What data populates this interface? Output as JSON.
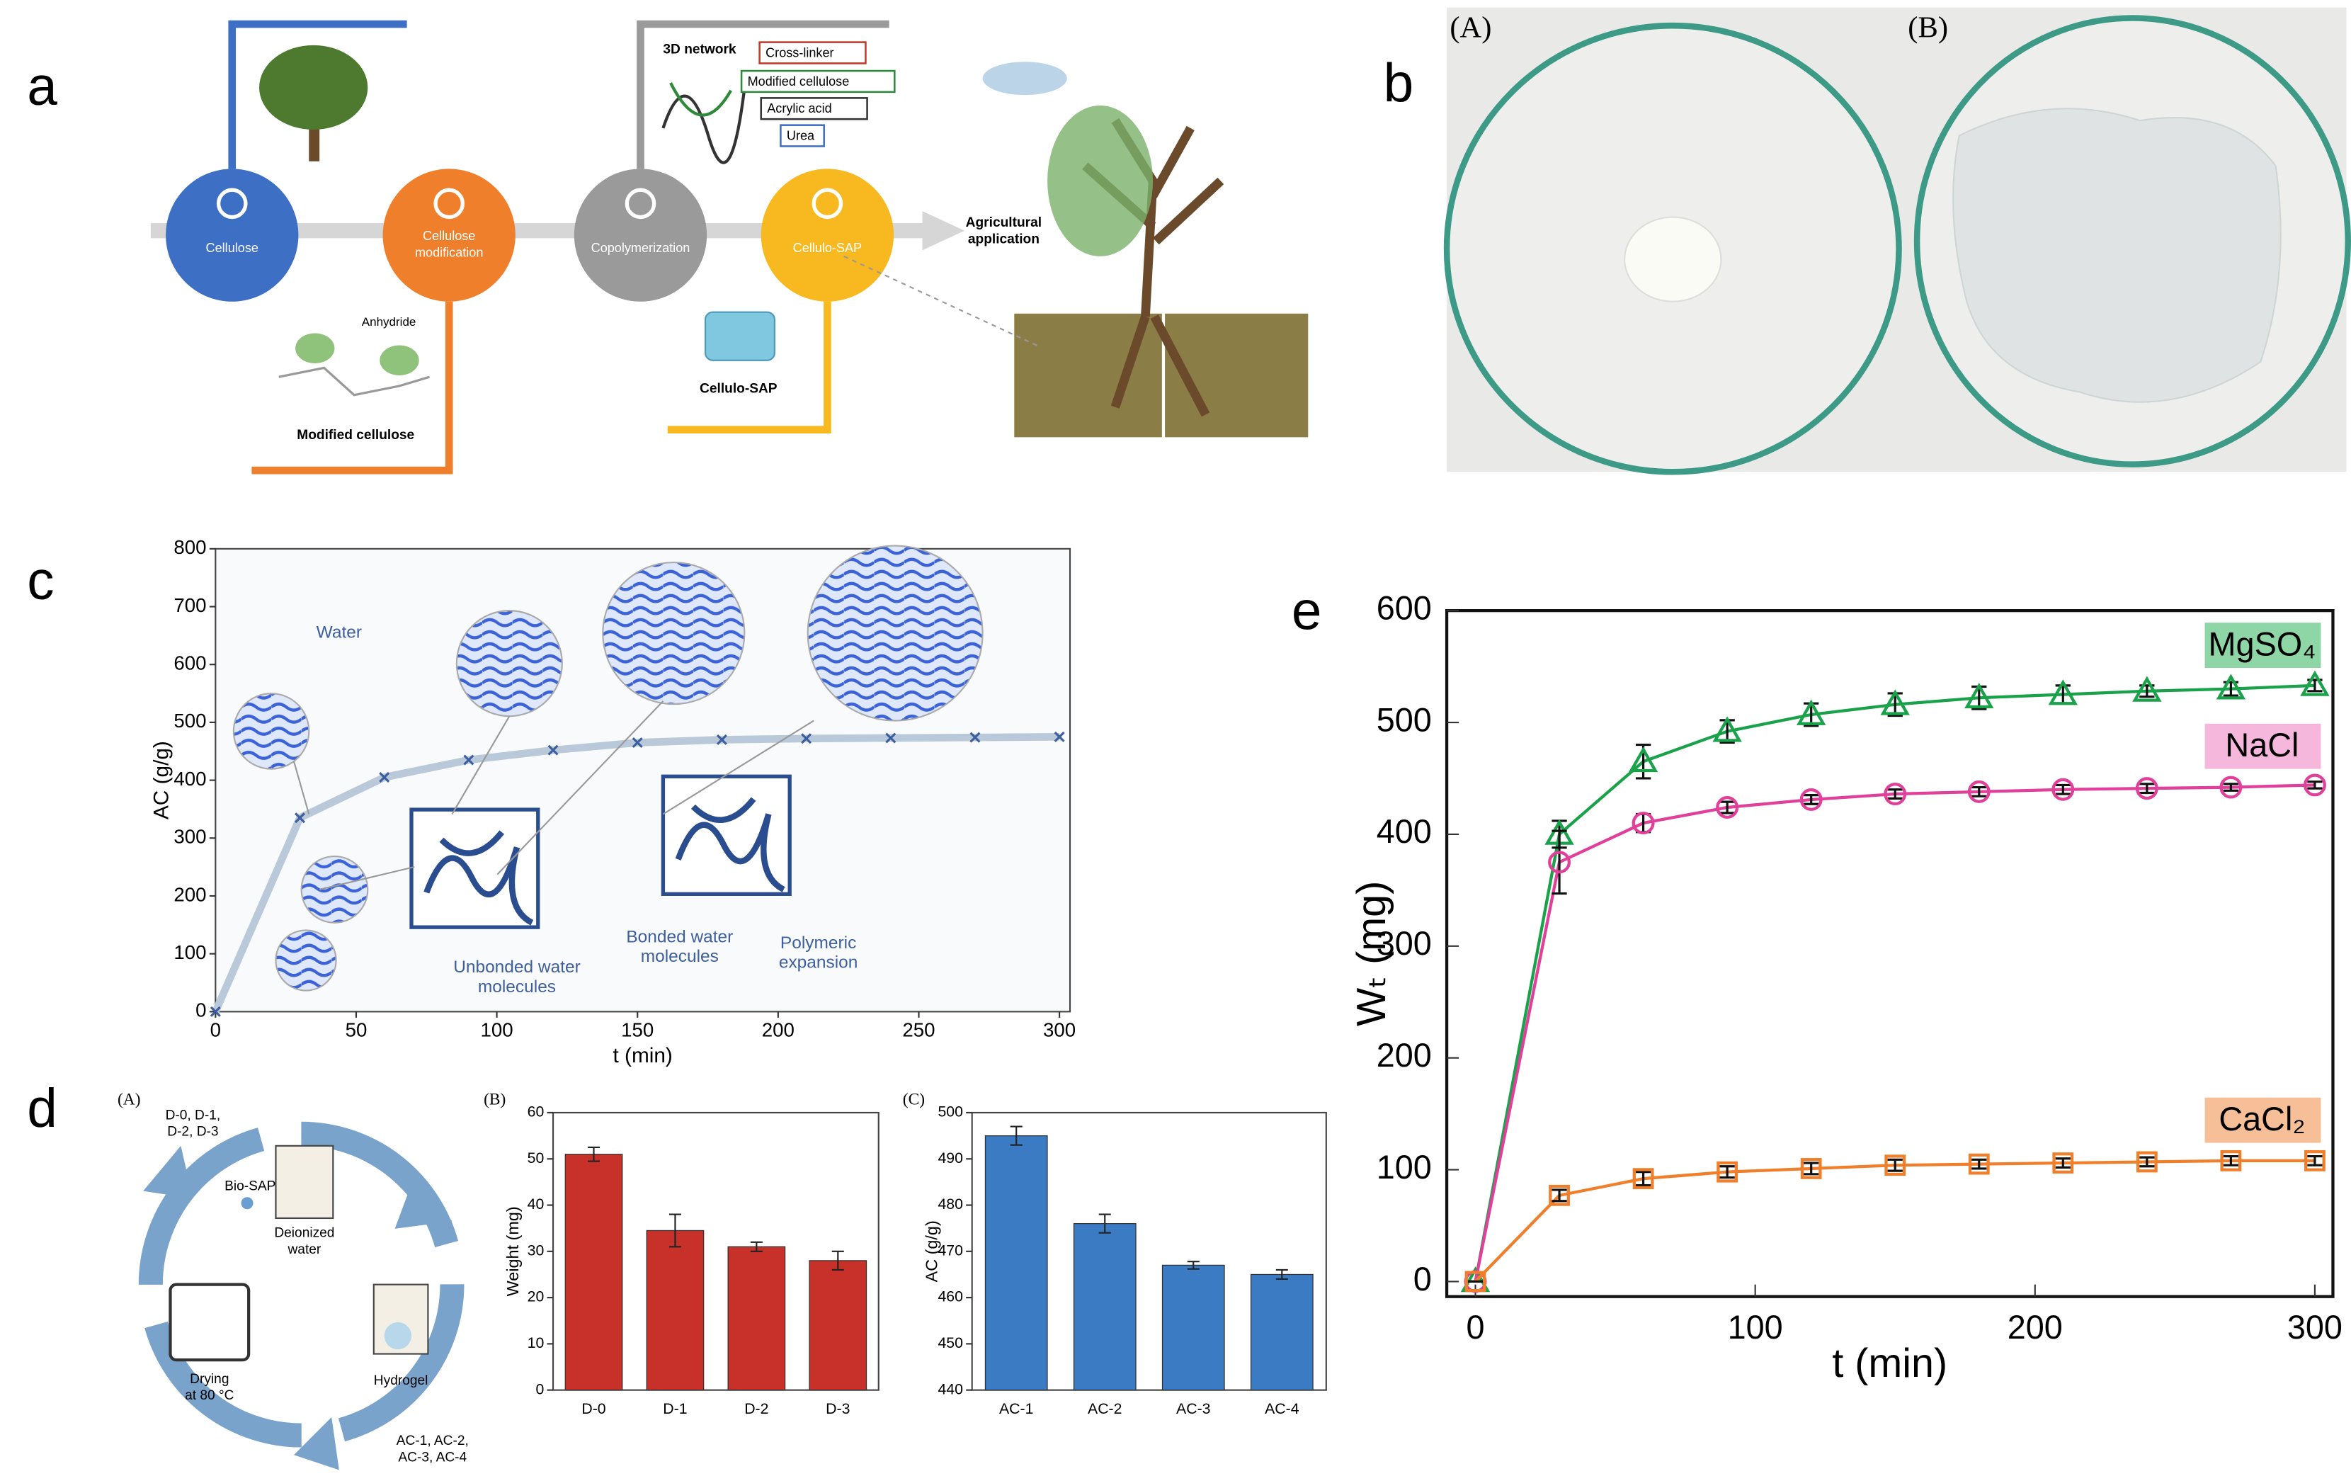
{
  "panel_labels": [
    "a",
    "b",
    "c",
    "d",
    "e"
  ],
  "a": {
    "steps": [
      [
        "Cellulose"
      ],
      [
        "Cellulose",
        "modification"
      ],
      [
        "Copolymerization"
      ],
      [
        "Cellulo-SAP"
      ],
      [
        "Agricultural",
        "application"
      ]
    ],
    "network_title": "3D network",
    "network_items": [
      "Cross-linker",
      "Modified cellulose",
      "Acrylic acid",
      "Urea"
    ],
    "anhydride": "Anhydride",
    "modified_caption": "Modified cellulose",
    "sap_caption": "Cellulo-SAP"
  },
  "b": {
    "labels": [
      "(A)",
      "(B)"
    ]
  },
  "d_scheme": {
    "label": "(A)",
    "texts": [
      [
        "D-0, D-1,",
        "D-2, D-3"
      ],
      [
        "Bio-SAP"
      ],
      [
        "Deionized",
        "water"
      ],
      [
        "Drying",
        "at 80 °C"
      ],
      [
        "Hydrogel"
      ],
      [
        "AC-1, AC-2,",
        "AC-3, AC-4"
      ]
    ]
  },
  "chart_data": [
    {
      "type": "line",
      "x_label": "t (min)",
      "y_label": "AC (g/g)",
      "x": [
        0,
        30,
        60,
        90,
        120,
        150,
        180,
        210,
        240,
        270,
        300
      ],
      "values": [
        0,
        335,
        405,
        435,
        452,
        465,
        470,
        472,
        473,
        474,
        475
      ],
      "color": "#b9c9da",
      "marker_color": "#3d5f9e",
      "xlim": [
        0,
        300
      ],
      "xticks": [
        0,
        50,
        100,
        150,
        200,
        250,
        300
      ],
      "ylim": [
        0,
        800
      ],
      "yticks": [
        0,
        100,
        200,
        300,
        400,
        500,
        600,
        700,
        800
      ],
      "annotations": [
        [
          "Water"
        ],
        [
          "Unbonded water",
          "molecules"
        ],
        [
          "Bonded water",
          "molecules"
        ],
        [
          "Polymeric",
          "expansion"
        ]
      ]
    },
    {
      "type": "bar",
      "label": "(B)",
      "y_label": "Weight (mg)",
      "categories": [
        "D-0",
        "D-1",
        "D-2",
        "D-3"
      ],
      "values": [
        51,
        34.5,
        31,
        28
      ],
      "errors": [
        1.5,
        3.5,
        1,
        2
      ],
      "color": "#c8312a",
      "ylim": [
        0,
        60
      ],
      "yticks": [
        0,
        10,
        20,
        30,
        40,
        50,
        60
      ]
    },
    {
      "type": "bar",
      "label": "(C)",
      "y_label": "AC (g/g)",
      "categories": [
        "AC-1",
        "AC-2",
        "AC-3",
        "AC-4"
      ],
      "values": [
        495,
        476,
        467,
        465
      ],
      "errors": [
        2,
        2,
        0.8,
        1
      ],
      "color": "#3a7bc4",
      "ylim": [
        440,
        500
      ],
      "yticks": [
        440,
        450,
        460,
        470,
        480,
        490,
        500
      ]
    },
    {
      "type": "errorline",
      "x_label": "t (min)",
      "y_label": "Wₜ (mg)",
      "x": [
        0,
        30,
        60,
        90,
        120,
        150,
        180,
        210,
        240,
        270,
        300
      ],
      "xlim": [
        0,
        300
      ],
      "xticks": [
        0,
        100,
        200,
        300
      ],
      "ylim": [
        0,
        600
      ],
      "yticks": [
        0,
        100,
        200,
        300,
        400,
        500,
        600
      ],
      "series": [
        {
          "name": "MgSO₄",
          "color": "#1aa24b",
          "label_color": "#8fd6a6",
          "marker": "triangle",
          "values": [
            0,
            400,
            465,
            492,
            507,
            516,
            522,
            525,
            528,
            530,
            533
          ],
          "errors": [
            0,
            12,
            15,
            10,
            10,
            10,
            10,
            8,
            5,
            6,
            5
          ]
        },
        {
          "name": "NaCl",
          "color": "#e0409a",
          "label_color": "#f5b8dc",
          "marker": "circle",
          "values": [
            0,
            375,
            410,
            424,
            431,
            436,
            438,
            440,
            441,
            442,
            444
          ],
          "errors": [
            0,
            28,
            8,
            5,
            4,
            4,
            4,
            4,
            4,
            3,
            3
          ]
        },
        {
          "name": "CaCl₂",
          "color": "#f07f2c",
          "label_color": "#f6bf98",
          "marker": "square",
          "values": [
            0,
            77,
            92,
            98,
            101,
            104,
            105,
            106,
            107,
            108,
            108
          ],
          "errors": [
            0,
            5,
            6,
            5,
            5,
            5,
            4,
            4,
            4,
            4,
            4
          ]
        }
      ]
    }
  ]
}
